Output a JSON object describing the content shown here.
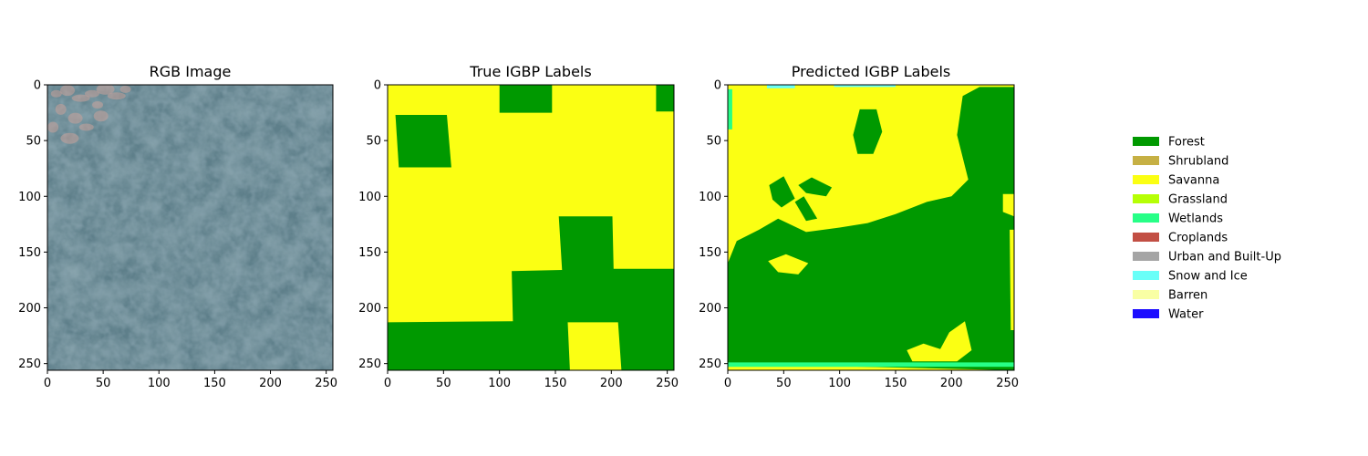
{
  "chart_data": [
    {
      "type": "heatmap",
      "title": "RGB Image",
      "xlim": [
        0,
        256
      ],
      "ylim": [
        256,
        0
      ],
      "xticks": [
        0,
        50,
        100,
        150,
        200,
        250
      ],
      "yticks": [
        0,
        50,
        100,
        150,
        200,
        250
      ],
      "content": "rgb-satellite-image",
      "dominant_color": "#5e7f8a",
      "highlight_color": "#c9a29b",
      "shadow_color": "#3f5e6c"
    },
    {
      "type": "heatmap",
      "title": "True IGBP Labels",
      "xlim": [
        0,
        256
      ],
      "ylim": [
        256,
        0
      ],
      "xticks": [
        0,
        50,
        100,
        150,
        200,
        250
      ],
      "yticks": [
        0,
        50,
        100,
        150,
        200,
        250
      ],
      "background_class": "Savanna",
      "regions": [
        {
          "class": "Forest",
          "polygon": [
            [
              100,
              0
            ],
            [
              147,
              0
            ],
            [
              147,
              25
            ],
            [
              100,
              25
            ]
          ]
        },
        {
          "class": "Forest",
          "polygon": [
            [
              240,
              0
            ],
            [
              256,
              0
            ],
            [
              256,
              24
            ],
            [
              240,
              24
            ]
          ]
        },
        {
          "class": "Forest",
          "polygon": [
            [
              7,
              27
            ],
            [
              53,
              27
            ],
            [
              57,
              74
            ],
            [
              10,
              74
            ]
          ]
        },
        {
          "class": "Forest",
          "polygon": [
            [
              153,
              118
            ],
            [
              201,
              118
            ],
            [
              202,
              165
            ],
            [
              256,
              165
            ],
            [
              256,
              256
            ],
            [
              209,
              256
            ],
            [
              206,
              213
            ],
            [
              161,
              213
            ],
            [
              163,
              256
            ],
            [
              0,
              256
            ],
            [
              0,
              213
            ],
            [
              112,
              212
            ],
            [
              111,
              167
            ],
            [
              156,
              166
            ]
          ]
        }
      ]
    },
    {
      "type": "heatmap",
      "title": "Predicted IGBP Labels",
      "xlim": [
        0,
        256
      ],
      "ylim": [
        256,
        0
      ],
      "xticks": [
        0,
        50,
        100,
        150,
        200,
        250
      ],
      "yticks": [
        0,
        50,
        100,
        150,
        200,
        250
      ],
      "background_class": "Savanna",
      "regions": [
        {
          "class": "Forest",
          "polygon": [
            [
              0,
              250
            ],
            [
              0,
              160
            ],
            [
              8,
              140
            ],
            [
              28,
              130
            ],
            [
              45,
              120
            ],
            [
              70,
              132
            ],
            [
              100,
              128
            ],
            [
              125,
              124
            ],
            [
              150,
              116
            ],
            [
              178,
              105
            ],
            [
              200,
              100
            ],
            [
              215,
              85
            ],
            [
              205,
              45
            ],
            [
              210,
              10
            ],
            [
              225,
              2
            ],
            [
              256,
              2
            ],
            [
              256,
              256
            ]
          ]
        },
        {
          "class": "Forest",
          "polygon": [
            [
              112,
              45
            ],
            [
              118,
              22
            ],
            [
              133,
              22
            ],
            [
              138,
              42
            ],
            [
              130,
              62
            ],
            [
              116,
              62
            ]
          ]
        },
        {
          "class": "Forest",
          "polygon": [
            [
              63,
              90
            ],
            [
              75,
              83
            ],
            [
              93,
              92
            ],
            [
              88,
              100
            ],
            [
              70,
              97
            ]
          ]
        },
        {
          "class": "Forest",
          "polygon": [
            [
              37,
              90
            ],
            [
              50,
              82
            ],
            [
              60,
              102
            ],
            [
              48,
              110
            ],
            [
              40,
              103
            ]
          ]
        },
        {
          "class": "Forest",
          "polygon": [
            [
              60,
              105
            ],
            [
              68,
              100
            ],
            [
              80,
              120
            ],
            [
              70,
              122
            ]
          ]
        },
        {
          "class": "Savanna",
          "polygon": [
            [
              36,
              158
            ],
            [
              52,
              152
            ],
            [
              72,
              160
            ],
            [
              63,
              170
            ],
            [
              45,
              168
            ]
          ]
        },
        {
          "class": "Savanna",
          "polygon": [
            [
              160,
              238
            ],
            [
              175,
              232
            ],
            [
              190,
              237
            ],
            [
              198,
              222
            ],
            [
              212,
              212
            ],
            [
              218,
              238
            ],
            [
              205,
              248
            ],
            [
              165,
              248
            ]
          ]
        },
        {
          "class": "Savanna",
          "polygon": [
            [
              246,
              98
            ],
            [
              256,
              98
            ],
            [
              256,
              118
            ],
            [
              246,
              114
            ]
          ]
        },
        {
          "class": "Savanna",
          "polygon": [
            [
              252,
              130
            ],
            [
              256,
              130
            ],
            [
              256,
              220
            ],
            [
              253,
              220
            ]
          ]
        },
        {
          "class": "Wetlands",
          "polygon": [
            [
              0,
              249
            ],
            [
              256,
              249
            ],
            [
              256,
              253
            ],
            [
              0,
              253
            ]
          ]
        },
        {
          "class": "Wetlands",
          "polygon": [
            [
              0,
              4
            ],
            [
              4,
              4
            ],
            [
              4,
              40
            ],
            [
              0,
              40
            ]
          ]
        },
        {
          "class": "Snow and Ice",
          "polygon": [
            [
              35,
              0
            ],
            [
              60,
              0
            ],
            [
              60,
              3
            ],
            [
              35,
              3
            ]
          ]
        },
        {
          "class": "Snow and Ice",
          "polygon": [
            [
              95,
              0
            ],
            [
              150,
              0
            ],
            [
              150,
              2
            ],
            [
              95,
              2
            ]
          ]
        }
      ]
    }
  ],
  "legend": {
    "placement": "right",
    "items": [
      {
        "label": "Forest",
        "color": "#009900"
      },
      {
        "label": "Shrubland",
        "color": "#c6b044"
      },
      {
        "label": "Savanna",
        "color": "#fbff13"
      },
      {
        "label": "Grassland",
        "color": "#b6ff05"
      },
      {
        "label": "Wetlands",
        "color": "#27ff87"
      },
      {
        "label": "Croplands",
        "color": "#c24f44"
      },
      {
        "label": "Urban and Built-Up",
        "color": "#a5a5a5"
      },
      {
        "label": "Snow and Ice",
        "color": "#69fff8"
      },
      {
        "label": "Barren",
        "color": "#f9ffa4"
      },
      {
        "label": "Water",
        "color": "#1c0dff"
      }
    ]
  }
}
